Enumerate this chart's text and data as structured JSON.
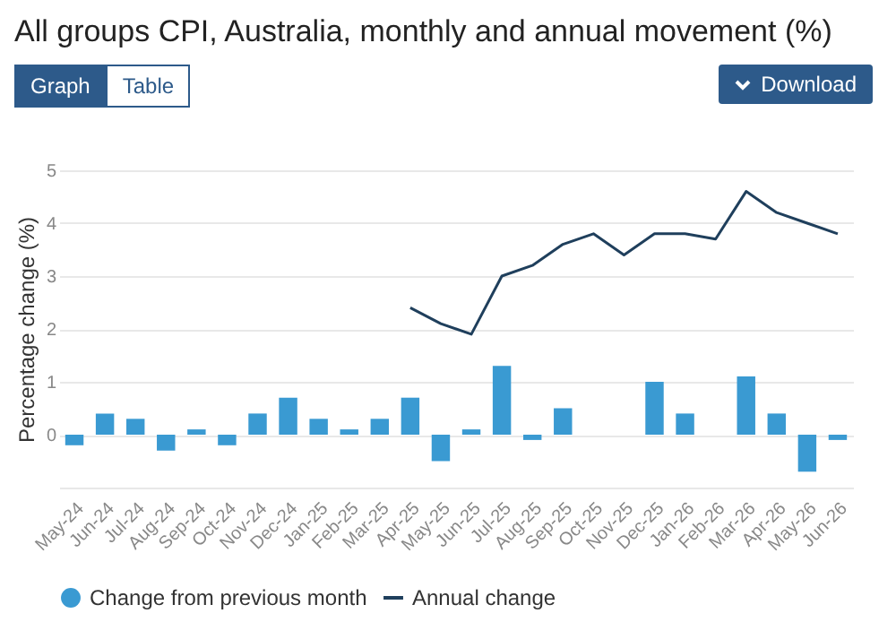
{
  "chart_data": {
    "type": "bar",
    "title": "All groups CPI, Australia, monthly and annual movement (%)",
    "ylabel": "Percentage change (%)",
    "annotations": [
      "Graph",
      "Table",
      "Download"
    ],
    "categories": [
      "May-24",
      "Jun-24",
      "Jul-24",
      "Aug-24",
      "Sep-24",
      "Oct-24",
      "Nov-24",
      "Dec-24",
      "Jan-25",
      "Feb-25",
      "Mar-25",
      "Apr-25",
      "May-25",
      "Jun-25",
      "Jul-25",
      "Aug-25",
      "Sep-25",
      "Oct-25",
      "Nov-25",
      "Dec-25",
      "Jan-26",
      "Feb-26",
      "Mar-26",
      "Apr-26",
      "May-26",
      "Jun-26"
    ],
    "series": [
      {
        "name": "Change from previous month",
        "color": "#3a9ad2",
        "values": [
          -0.2,
          0.4,
          0.3,
          -0.3,
          0.1,
          -0.2,
          0.4,
          0.7,
          0.3,
          0.1,
          0.3,
          0.7,
          -0.5,
          0.1,
          1.3,
          -0.1,
          0.5,
          null,
          null,
          1.0,
          0.4,
          null,
          1.1,
          0.4,
          -0.7,
          -0.1
        ]
      },
      {
        "name": "Annual change",
        "type": "line",
        "color": "#1f3f5c",
        "values": [
          null,
          null,
          null,
          null,
          null,
          null,
          null,
          null,
          null,
          null,
          null,
          2.4,
          2.1,
          1.9,
          3.0,
          3.2,
          3.6,
          3.8,
          3.4,
          3.8,
          3.8,
          3.7,
          4.6,
          4.2,
          4.0,
          3.8
        ]
      }
    ],
    "ylim": [
      -1,
      5
    ],
    "yticks": [
      {
        "value": -1,
        "label": null
      },
      0,
      1,
      2,
      3,
      4,
      5
    ],
    "grid": "y",
    "legend": "bottom"
  }
}
